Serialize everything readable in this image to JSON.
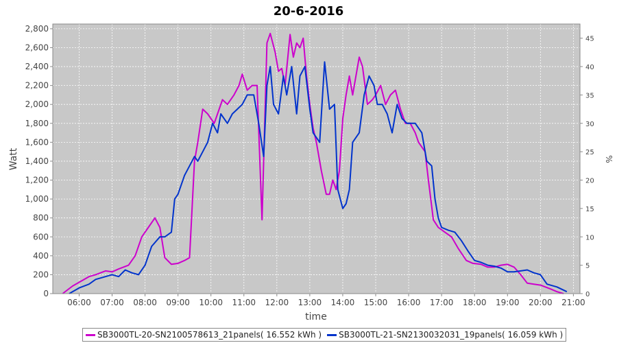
{
  "chart_data": {
    "type": "line",
    "title": "20-6-2016",
    "xlabel": "time",
    "ylabel": "Watt",
    "y2label": "%",
    "xlim": [
      5.2,
      21.2
    ],
    "ylim": [
      0,
      2850
    ],
    "y2lim": [
      0,
      47.5
    ],
    "x_ticks": [
      "06:00",
      "07:00",
      "08:00",
      "09:00",
      "10:00",
      "11:00",
      "12:00",
      "13:00",
      "14:00",
      "15:00",
      "16:00",
      "17:00",
      "18:00",
      "19:00",
      "20:00",
      "21:00"
    ],
    "x_tick_values": [
      6,
      7,
      8,
      9,
      10,
      11,
      12,
      13,
      14,
      15,
      16,
      17,
      18,
      19,
      20,
      21
    ],
    "y_ticks": [
      "0",
      "200",
      "400",
      "600",
      "800",
      "1,000",
      "1,200",
      "1,400",
      "1,600",
      "1,800",
      "2,000",
      "2,200",
      "2,400",
      "2,600",
      "2,800"
    ],
    "y_tick_values": [
      0,
      200,
      400,
      600,
      800,
      1000,
      1200,
      1400,
      1600,
      1800,
      2000,
      2200,
      2400,
      2600,
      2800
    ],
    "y2_ticks": [
      "0",
      "5",
      "10",
      "15",
      "20",
      "25",
      "30",
      "35",
      "40",
      "45"
    ],
    "y2_tick_values": [
      0,
      5,
      10,
      15,
      20,
      25,
      30,
      35,
      40,
      45
    ],
    "background": "#c8c8c8",
    "grid": true,
    "legend_position": "bottom",
    "series": [
      {
        "name": "SB3000TL-20-SN2100578613_21panels( 16.552 kWh )",
        "color": "#cc00cc",
        "x": [
          5.5,
          5.8,
          6.0,
          6.3,
          6.5,
          6.8,
          7.0,
          7.2,
          7.5,
          7.7,
          7.9,
          8.1,
          8.3,
          8.45,
          8.6,
          8.8,
          9.0,
          9.2,
          9.35,
          9.5,
          9.6,
          9.75,
          9.9,
          10.1,
          10.2,
          10.35,
          10.5,
          10.7,
          10.85,
          10.95,
          11.1,
          11.25,
          11.4,
          11.55,
          11.7,
          11.8,
          11.95,
          12.05,
          12.15,
          12.25,
          12.4,
          12.5,
          12.6,
          12.7,
          12.8,
          12.9,
          13.0,
          13.1,
          13.2,
          13.35,
          13.5,
          13.6,
          13.7,
          13.8,
          13.9,
          14.0,
          14.1,
          14.2,
          14.3,
          14.4,
          14.5,
          14.6,
          14.75,
          14.9,
          15.0,
          15.15,
          15.3,
          15.45,
          15.6,
          15.75,
          15.9,
          16.05,
          16.2,
          16.3,
          16.5,
          16.6,
          16.75,
          16.9,
          17.1,
          17.3,
          17.5,
          17.75,
          17.95,
          18.2,
          18.4,
          18.6,
          18.8,
          19.0,
          19.2,
          19.4,
          19.6,
          19.8,
          20.0,
          20.3,
          20.5,
          20.7
        ],
        "values": [
          0,
          80,
          120,
          180,
          200,
          240,
          230,
          260,
          300,
          400,
          600,
          700,
          800,
          700,
          380,
          310,
          320,
          350,
          380,
          1400,
          1600,
          1950,
          1900,
          1800,
          1900,
          2050,
          2000,
          2100,
          2200,
          2320,
          2150,
          2200,
          2200,
          780,
          2650,
          2750,
          2550,
          2350,
          2380,
          2200,
          2740,
          2500,
          2650,
          2600,
          2700,
          2300,
          2000,
          1750,
          1600,
          1300,
          1050,
          1050,
          1200,
          1100,
          1300,
          1850,
          2100,
          2300,
          2100,
          2300,
          2500,
          2400,
          2000,
          2050,
          2100,
          2200,
          2000,
          2100,
          2150,
          1950,
          1800,
          1800,
          1700,
          1600,
          1500,
          1200,
          780,
          700,
          650,
          600,
          480,
          350,
          320,
          310,
          280,
          280,
          300,
          310,
          280,
          200,
          110,
          100,
          90,
          50,
          20,
          0
        ]
      },
      {
        "name": "SB3000TL-21-SN2130032031_19panels( 16.059 kWh )",
        "color": "#0033cc",
        "x": [
          5.7,
          6.0,
          6.3,
          6.5,
          6.8,
          7.0,
          7.2,
          7.4,
          7.6,
          7.8,
          8.0,
          8.2,
          8.45,
          8.6,
          8.8,
          8.9,
          9.0,
          9.2,
          9.35,
          9.5,
          9.6,
          9.75,
          9.9,
          10.05,
          10.2,
          10.3,
          10.5,
          10.65,
          10.8,
          10.95,
          11.1,
          11.3,
          11.45,
          11.6,
          11.7,
          11.8,
          11.9,
          12.05,
          12.2,
          12.3,
          12.45,
          12.6,
          12.7,
          12.85,
          13.0,
          13.1,
          13.3,
          13.45,
          13.6,
          13.75,
          13.85,
          14.0,
          14.1,
          14.2,
          14.3,
          14.5,
          14.65,
          14.8,
          14.95,
          15.05,
          15.2,
          15.35,
          15.5,
          15.65,
          15.8,
          15.95,
          16.1,
          16.2,
          16.4,
          16.55,
          16.7,
          16.8,
          16.9,
          17.0,
          17.2,
          17.4,
          17.6,
          17.8,
          18.0,
          18.2,
          18.4,
          18.6,
          18.8,
          19.0,
          19.2,
          19.4,
          19.6,
          19.8,
          20.0,
          20.2,
          20.5,
          20.8
        ],
        "values": [
          0,
          60,
          100,
          150,
          180,
          200,
          180,
          250,
          220,
          200,
          300,
          500,
          600,
          600,
          650,
          1000,
          1050,
          1250,
          1350,
          1450,
          1400,
          1500,
          1600,
          1800,
          1700,
          1900,
          1800,
          1900,
          1950,
          2000,
          2100,
          2100,
          1800,
          1450,
          2200,
          2400,
          2000,
          1900,
          2300,
          2100,
          2400,
          1900,
          2300,
          2400,
          1950,
          1700,
          1600,
          2450,
          1950,
          2000,
          1100,
          900,
          950,
          1100,
          1600,
          1700,
          2100,
          2300,
          2200,
          2000,
          2000,
          1900,
          1700,
          2000,
          1850,
          1800,
          1800,
          1800,
          1700,
          1400,
          1350,
          1000,
          800,
          700,
          670,
          650,
          560,
          450,
          350,
          330,
          300,
          290,
          270,
          230,
          230,
          240,
          250,
          220,
          200,
          100,
          70,
          20
        ]
      }
    ]
  }
}
